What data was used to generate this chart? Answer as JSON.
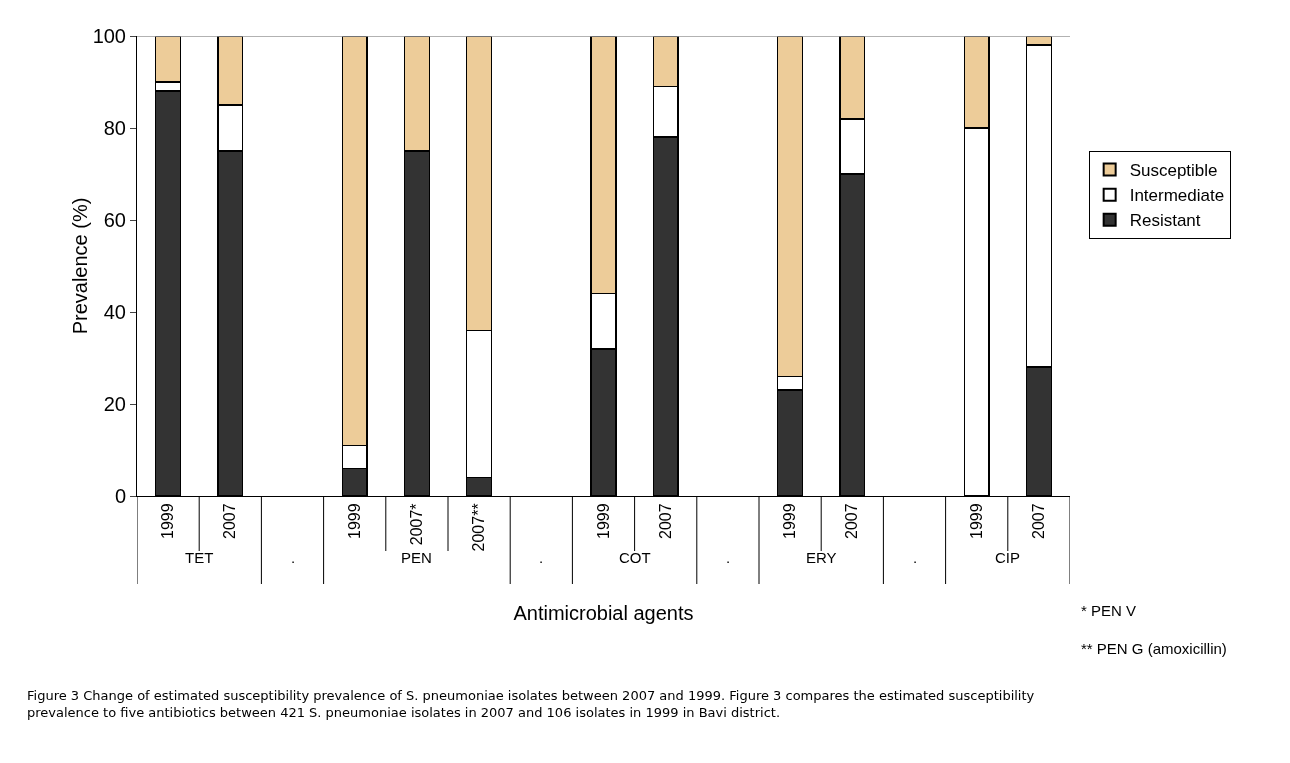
{
  "chart_data": {
    "type": "bar",
    "stacked": true,
    "xlabel": "Antimicrobial agents",
    "ylabel": "Prevalence (%)",
    "categories": [
      "1999",
      "2007",
      null,
      "1999",
      "2007*",
      "2007**",
      null,
      "1999",
      "2007",
      null,
      "1999",
      "2007",
      null,
      "1999",
      "2007"
    ],
    "series": [
      {
        "name": "Resistant",
        "color": "#333333",
        "values": [
          88,
          75,
          null,
          6,
          75,
          4,
          null,
          32,
          78,
          null,
          23,
          70,
          null,
          0,
          28
        ]
      },
      {
        "name": "Intermediate",
        "color": "#ffffff",
        "values": [
          2,
          10,
          null,
          5,
          0,
          32,
          null,
          12,
          11,
          null,
          3,
          12,
          null,
          80,
          70
        ]
      },
      {
        "name": "Susceptible",
        "color": "#edcc99",
        "values": [
          10,
          15,
          null,
          89,
          25,
          64,
          null,
          56,
          11,
          null,
          74,
          18,
          null,
          20,
          2
        ]
      }
    ],
    "ylim": [
      0,
      100
    ],
    "yticks": [
      0,
      20,
      40,
      60,
      80,
      100
    ],
    "grid": false,
    "legend": "right",
    "annotations": [
      "TET",
      ".",
      "PEN",
      ".",
      "COT",
      ".",
      "ERY",
      ".",
      "CIP",
      "* PEN V",
      "** PEN G (amoxicillin)",
      "Figure 3 Change of estimated susceptibility prevalence of S. pneumoniae isolates between 2007 and 1999. Figure 3 compares the estimated susceptibility prevalence to five antibiotics between 421 S. pneumoniae isolates in 2007 and 106 isolates in 1999 in Bavi district."
    ]
  }
}
